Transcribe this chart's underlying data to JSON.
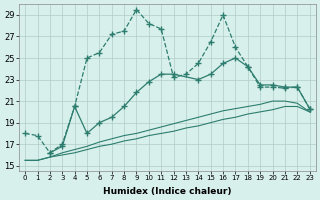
{
  "xlabel": "Humidex (Indice chaleur)",
  "line_color": "#2d7d6e",
  "bg_color": "#d8f0ec",
  "grid_color": "#b0ccc8",
  "xlim": [
    -0.5,
    23.5
  ],
  "ylim": [
    14.5,
    30
  ],
  "xticks": [
    0,
    1,
    2,
    3,
    4,
    5,
    6,
    7,
    8,
    9,
    10,
    11,
    12,
    13,
    14,
    15,
    16,
    17,
    18,
    19,
    20,
    21,
    22,
    23
  ],
  "yticks": [
    15,
    17,
    19,
    21,
    23,
    25,
    27,
    29
  ],
  "line1_x": [
    0,
    1,
    2,
    3,
    4,
    5,
    6,
    7,
    8,
    9,
    10,
    11,
    12,
    13,
    14,
    15,
    16,
    17,
    18,
    19,
    20,
    21,
    22,
    23
  ],
  "line1_y": [
    18.0,
    17.8,
    16.2,
    17.0,
    20.5,
    25.0,
    25.5,
    27.2,
    27.5,
    29.5,
    28.2,
    27.7,
    23.2,
    23.5,
    24.5,
    26.5,
    29.0,
    26.0,
    24.2,
    22.3,
    22.3,
    22.2,
    22.3,
    20.3
  ],
  "line2_x": [
    2,
    3,
    4,
    5,
    6,
    7,
    8,
    9,
    10,
    11,
    12,
    14,
    15,
    16,
    17,
    18,
    19,
    20,
    21,
    22,
    23
  ],
  "line2_y": [
    16.2,
    16.8,
    20.5,
    18.0,
    19.0,
    19.5,
    20.5,
    21.8,
    22.8,
    23.5,
    23.5,
    23.0,
    23.5,
    24.5,
    25.0,
    24.2,
    22.5,
    22.5,
    22.3,
    22.3,
    20.3
  ],
  "line3_x": [
    0,
    1,
    2,
    3,
    4,
    5,
    6,
    7,
    8,
    9,
    10,
    11,
    12,
    13,
    14,
    15,
    16,
    17,
    18,
    19,
    20,
    21,
    22,
    23
  ],
  "line3_y": [
    15.5,
    15.5,
    15.8,
    16.0,
    16.2,
    16.5,
    16.8,
    17.0,
    17.3,
    17.5,
    17.8,
    18.0,
    18.2,
    18.5,
    18.7,
    19.0,
    19.3,
    19.5,
    19.8,
    20.0,
    20.2,
    20.5,
    20.5,
    20.0
  ],
  "line4_x": [
    0,
    1,
    2,
    3,
    4,
    5,
    6,
    7,
    8,
    9,
    10,
    11,
    12,
    13,
    14,
    15,
    16,
    17,
    18,
    19,
    20,
    21,
    22,
    23
  ],
  "line4_y": [
    15.5,
    15.5,
    15.8,
    16.2,
    16.5,
    16.8,
    17.2,
    17.5,
    17.8,
    18.0,
    18.3,
    18.6,
    18.9,
    19.2,
    19.5,
    19.8,
    20.1,
    20.3,
    20.5,
    20.7,
    21.0,
    21.0,
    20.8,
    20.0
  ]
}
